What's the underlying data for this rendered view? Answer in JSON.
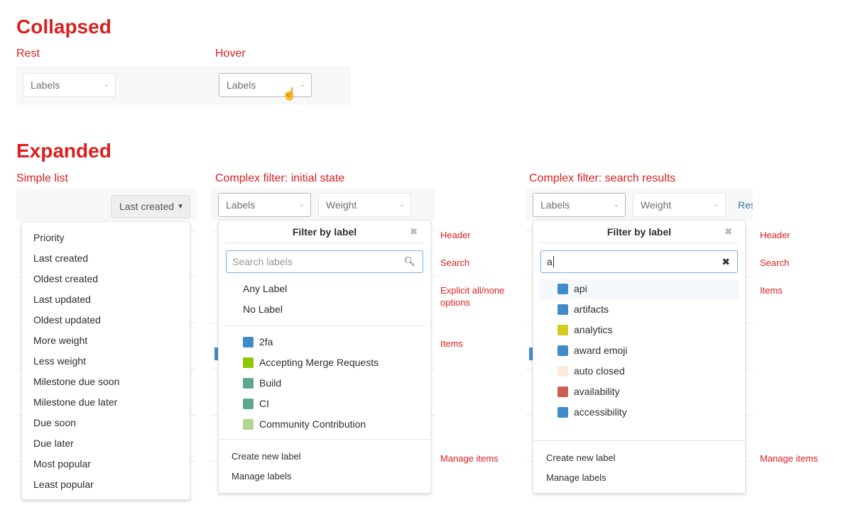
{
  "collapsed": {
    "title": "Collapsed",
    "rest_label": "Rest",
    "hover_label": "Hover",
    "dropdown_text": "Labels"
  },
  "expanded": {
    "title": "Expanded",
    "simple_label": "Simple list",
    "initial_label": "Complex filter: initial state",
    "results_label": "Complex filter: search results"
  },
  "simple": {
    "button": "Last created",
    "items": [
      "Priority",
      "Last created",
      "Oldest created",
      "Last updated",
      "Oldest updated",
      "More weight",
      "Less weight",
      "Milestone due soon",
      "Milestone due later",
      "Due soon",
      "Due later",
      "Most popular",
      "Least popular"
    ]
  },
  "filters": {
    "labels": "Labels",
    "weight": "Weight",
    "reset": "Res"
  },
  "initial": {
    "header": "Filter by label",
    "search_placeholder": "Search labels",
    "options": [
      "Any Label",
      "No Label"
    ],
    "items": [
      {
        "name": "2fa",
        "color": "#428bca"
      },
      {
        "name": "Accepting Merge Requests",
        "color": "#8fc70b"
      },
      {
        "name": "Build",
        "color": "#5ea88b"
      },
      {
        "name": "CI",
        "color": "#5ea88b"
      },
      {
        "name": "Community Contribution",
        "color": "#b4d494"
      }
    ],
    "footer": [
      "Create new label",
      "Manage labels"
    ]
  },
  "results": {
    "header": "Filter by label",
    "search_value": "a",
    "items": [
      {
        "name": "api",
        "color": "#428bca"
      },
      {
        "name": "artifacts",
        "color": "#428bca"
      },
      {
        "name": "analytics",
        "color": "#d4ca20"
      },
      {
        "name": "award emoji",
        "color": "#428bca"
      },
      {
        "name": "auto closed",
        "color": "#fcebdc"
      },
      {
        "name": "availability",
        "color": "#cc5e55"
      },
      {
        "name": "accessibility",
        "color": "#428bca"
      }
    ],
    "footer": [
      "Create new label",
      "Manage labels"
    ]
  },
  "annotations": {
    "header": "Header",
    "search": "Search",
    "allnone": "Explicit all/none options",
    "items": "Items",
    "manage": "Manage items"
  }
}
